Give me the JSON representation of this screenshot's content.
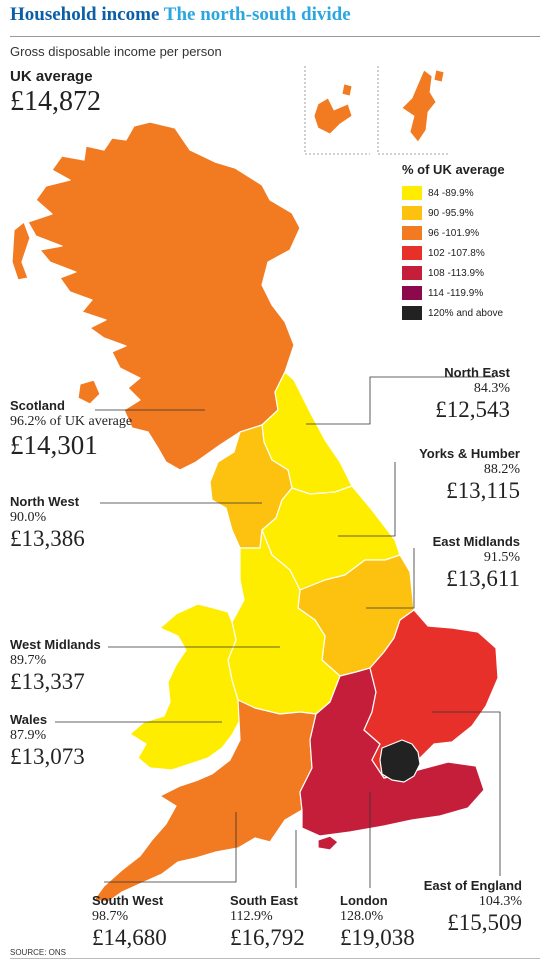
{
  "headline": {
    "part1": "Household income",
    "part2": "The north-south divide"
  },
  "subtitle": "Gross disposable income per person",
  "uk_average": {
    "label": "UK average",
    "value": "£14,872"
  },
  "legend": {
    "title": "% of UK average",
    "items": [
      {
        "label": "84 -89.9%",
        "color": "#ffed00"
      },
      {
        "label": "90 -95.9%",
        "color": "#fcc20f"
      },
      {
        "label": "96 -101.9%",
        "color": "#f27a21"
      },
      {
        "label": "102 -107.8%",
        "color": "#e8302b"
      },
      {
        "label": "108 -113.9%",
        "color": "#c41e3a"
      },
      {
        "label": "114 -119.9%",
        "color": "#8c0a4b"
      },
      {
        "label": "120% and above",
        "color": "#222222"
      }
    ]
  },
  "regions": {
    "scotland": {
      "name": "Scotland",
      "pct": "96.2% of UK average",
      "value": "£14,301",
      "color": "#f27a21"
    },
    "north_east": {
      "name": "North East",
      "pct": "84.3%",
      "value": "£12,543",
      "color": "#ffed00"
    },
    "yorks": {
      "name": "Yorks & Humber",
      "pct": "88.2%",
      "value": "£13,115",
      "color": "#ffed00"
    },
    "north_west": {
      "name": "North West",
      "pct": "90.0%",
      "value": "£13,386",
      "color": "#fcc20f"
    },
    "east_midlands": {
      "name": "East Midlands",
      "pct": "91.5%",
      "value": "£13,611",
      "color": "#fcc20f"
    },
    "west_midlands": {
      "name": "West Midlands",
      "pct": "89.7%",
      "value": "£13,337",
      "color": "#ffed00"
    },
    "wales": {
      "name": "Wales",
      "pct": "87.9%",
      "value": "£13,073",
      "color": "#ffed00"
    },
    "south_west": {
      "name": "South West",
      "pct": "98.7%",
      "value": "£14,680",
      "color": "#f27a21"
    },
    "south_east": {
      "name": "South East",
      "pct": "112.9%",
      "value": "£16,792",
      "color": "#c41e3a"
    },
    "london": {
      "name": "London",
      "pct": "128.0%",
      "value": "£19,038",
      "color": "#222222"
    },
    "east_england": {
      "name": "East of England",
      "pct": "104.3%",
      "value": "£15,509",
      "color": "#e8302b"
    }
  },
  "source": "SOURCE: ONS"
}
